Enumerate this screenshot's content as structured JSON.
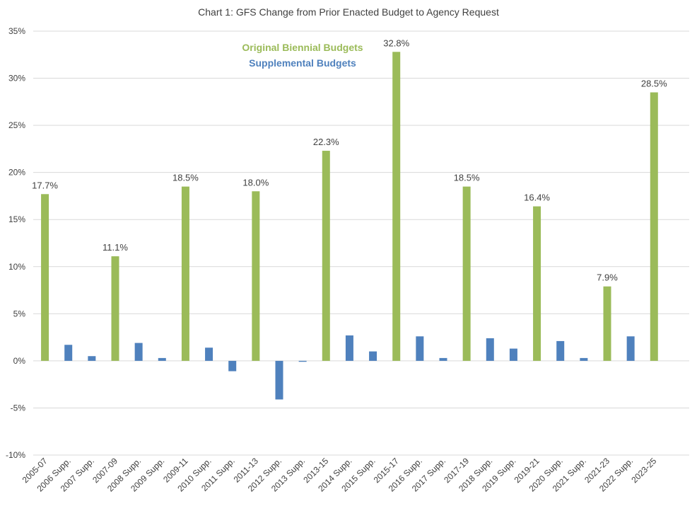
{
  "chart_data": {
    "type": "bar",
    "title": "Chart 1: GFS Change from Prior Enacted Budget to Agency Request",
    "xlabel": "",
    "ylabel": "",
    "ylim": [
      -10,
      35
    ],
    "yticks": [
      35,
      30,
      25,
      20,
      15,
      10,
      5,
      0,
      -5,
      -10
    ],
    "ytick_labels": [
      "35%",
      "30%",
      "25%",
      "20%",
      "15%",
      "10%",
      "5%",
      "0%",
      "-5%",
      "-10%"
    ],
    "grid": true,
    "legend": {
      "placement": "top-center",
      "entries": [
        {
          "name": "Original Biennial Budgets",
          "color": "#9BBB59"
        },
        {
          "name": "Supplemental Budgets",
          "color": "#4F81BD"
        }
      ]
    },
    "categories": [
      "2005-07",
      "2006 Supp.",
      "2007 Supp.",
      "2007-09",
      "2008 Supp.",
      "2009 Supp.",
      "2009-11",
      "2010 Supp.",
      "2011 Supp.",
      "2011-13",
      "2012 Supp.",
      "2013 Supp.",
      "2013-15",
      "2014 Supp.",
      "2015 Supp.",
      "2015-17",
      "2016 Supp.",
      "2017 Supp.",
      "2017-19",
      "2018 Supp.",
      "2019 Supp.",
      "2019-21",
      "2020 Supp.",
      "2021 Supp.",
      "2021-23",
      "2022 Supp.",
      "2023-25"
    ],
    "values": [
      17.7,
      1.7,
      0.5,
      11.1,
      1.9,
      0.3,
      18.5,
      1.4,
      -1.1,
      18.0,
      -4.1,
      -0.1,
      22.3,
      2.7,
      1.0,
      32.8,
      2.6,
      0.3,
      18.5,
      2.4,
      1.3,
      16.4,
      2.1,
      0.3,
      7.9,
      2.6,
      28.5
    ],
    "series_index": [
      0,
      1,
      1,
      0,
      1,
      1,
      0,
      1,
      1,
      0,
      1,
      1,
      0,
      1,
      1,
      0,
      1,
      1,
      0,
      1,
      1,
      0,
      1,
      1,
      0,
      1,
      0
    ],
    "data_labels": [
      "17.7%",
      "",
      "",
      "11.1%",
      "",
      "",
      "18.5%",
      "",
      "",
      "18.0%",
      "",
      "",
      "22.3%",
      "",
      "",
      "32.8%",
      "",
      "",
      "18.5%",
      "",
      "",
      "16.4%",
      "",
      "",
      "7.9%",
      "",
      "28.5%"
    ]
  }
}
